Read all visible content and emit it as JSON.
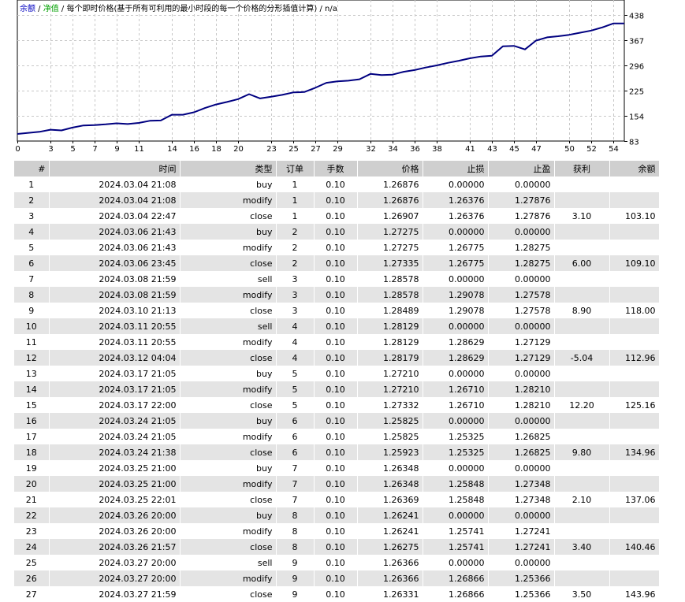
{
  "chart_data": {
    "type": "line",
    "legend": {
      "balance": "余额",
      "equity": "净值",
      "description": "每个即时价格(基于所有可利用的最小时段的每一个价格的分形插值计算)",
      "extra": "n/a"
    },
    "colors": {
      "line": "#000080",
      "balance_legend": "#0000c0",
      "equity_legend": "#00a000",
      "grid": "#c8c8c8"
    },
    "xlim": [
      0,
      55
    ],
    "ylim": [
      83,
      438
    ],
    "x_ticks": [
      0,
      3,
      5,
      7,
      9,
      11,
      14,
      16,
      18,
      20,
      23,
      25,
      27,
      29,
      32,
      34,
      36,
      38,
      41,
      43,
      45,
      47,
      50,
      52,
      54
    ],
    "y_ticks": [
      83,
      154,
      225,
      296,
      367,
      438
    ],
    "grid": true,
    "series": [
      {
        "x": [
          0,
          1,
          2,
          3,
          4,
          5,
          6,
          7,
          8,
          9,
          10,
          11,
          12,
          13,
          14,
          15,
          16,
          17,
          18,
          19,
          20,
          21,
          22,
          23,
          24,
          25,
          26,
          27,
          28,
          29,
          30,
          31,
          32,
          33,
          34,
          35,
          36,
          37,
          38,
          39,
          40,
          41,
          42,
          43,
          44,
          45,
          46,
          47,
          48,
          49,
          50,
          51,
          52,
          53,
          54,
          55
        ],
        "values": [
          103,
          106,
          109,
          115,
          113,
          121,
          127,
          128,
          130,
          133,
          131,
          134,
          140,
          141,
          157,
          157,
          164,
          176,
          186,
          193,
          201,
          215,
          203,
          208,
          213,
          220,
          221,
          233,
          247,
          251,
          253,
          257,
          272,
          269,
          270,
          278,
          283,
          290,
          296,
          303,
          309,
          316,
          321,
          323,
          350,
          351,
          341,
          366,
          375,
          378,
          382,
          388,
          394,
          403,
          414,
          414
        ]
      }
    ]
  },
  "table": {
    "headers": [
      "#",
      "时间",
      "类型",
      "订单",
      "手数",
      "价格",
      "止损",
      "止盈",
      "获利",
      "余额"
    ],
    "rows": [
      [
        "1",
        "2024.03.04 21:08",
        "buy",
        "1",
        "0.10",
        "1.26876",
        "0.00000",
        "0.00000",
        "",
        ""
      ],
      [
        "2",
        "2024.03.04 21:08",
        "modify",
        "1",
        "0.10",
        "1.26876",
        "1.26376",
        "1.27876",
        "",
        ""
      ],
      [
        "3",
        "2024.03.04 22:47",
        "close",
        "1",
        "0.10",
        "1.26907",
        "1.26376",
        "1.27876",
        "3.10",
        "103.10"
      ],
      [
        "4",
        "2024.03.06 21:43",
        "buy",
        "2",
        "0.10",
        "1.27275",
        "0.00000",
        "0.00000",
        "",
        ""
      ],
      [
        "5",
        "2024.03.06 21:43",
        "modify",
        "2",
        "0.10",
        "1.27275",
        "1.26775",
        "1.28275",
        "",
        ""
      ],
      [
        "6",
        "2024.03.06 23:45",
        "close",
        "2",
        "0.10",
        "1.27335",
        "1.26775",
        "1.28275",
        "6.00",
        "109.10"
      ],
      [
        "7",
        "2024.03.08 21:59",
        "sell",
        "3",
        "0.10",
        "1.28578",
        "0.00000",
        "0.00000",
        "",
        ""
      ],
      [
        "8",
        "2024.03.08 21:59",
        "modify",
        "3",
        "0.10",
        "1.28578",
        "1.29078",
        "1.27578",
        "",
        ""
      ],
      [
        "9",
        "2024.03.10 21:13",
        "close",
        "3",
        "0.10",
        "1.28489",
        "1.29078",
        "1.27578",
        "8.90",
        "118.00"
      ],
      [
        "10",
        "2024.03.11 20:55",
        "sell",
        "4",
        "0.10",
        "1.28129",
        "0.00000",
        "0.00000",
        "",
        ""
      ],
      [
        "11",
        "2024.03.11 20:55",
        "modify",
        "4",
        "0.10",
        "1.28129",
        "1.28629",
        "1.27129",
        "",
        ""
      ],
      [
        "12",
        "2024.03.12 04:04",
        "close",
        "4",
        "0.10",
        "1.28179",
        "1.28629",
        "1.27129",
        "-5.04",
        "112.96"
      ],
      [
        "13",
        "2024.03.17 21:05",
        "buy",
        "5",
        "0.10",
        "1.27210",
        "0.00000",
        "0.00000",
        "",
        ""
      ],
      [
        "14",
        "2024.03.17 21:05",
        "modify",
        "5",
        "0.10",
        "1.27210",
        "1.26710",
        "1.28210",
        "",
        ""
      ],
      [
        "15",
        "2024.03.17 22:00",
        "close",
        "5",
        "0.10",
        "1.27332",
        "1.26710",
        "1.28210",
        "12.20",
        "125.16"
      ],
      [
        "16",
        "2024.03.24 21:05",
        "buy",
        "6",
        "0.10",
        "1.25825",
        "0.00000",
        "0.00000",
        "",
        ""
      ],
      [
        "17",
        "2024.03.24 21:05",
        "modify",
        "6",
        "0.10",
        "1.25825",
        "1.25325",
        "1.26825",
        "",
        ""
      ],
      [
        "18",
        "2024.03.24 21:38",
        "close",
        "6",
        "0.10",
        "1.25923",
        "1.25325",
        "1.26825",
        "9.80",
        "134.96"
      ],
      [
        "19",
        "2024.03.25 21:00",
        "buy",
        "7",
        "0.10",
        "1.26348",
        "0.00000",
        "0.00000",
        "",
        ""
      ],
      [
        "20",
        "2024.03.25 21:00",
        "modify",
        "7",
        "0.10",
        "1.26348",
        "1.25848",
        "1.27348",
        "",
        ""
      ],
      [
        "21",
        "2024.03.25 22:01",
        "close",
        "7",
        "0.10",
        "1.26369",
        "1.25848",
        "1.27348",
        "2.10",
        "137.06"
      ],
      [
        "22",
        "2024.03.26 20:00",
        "buy",
        "8",
        "0.10",
        "1.26241",
        "0.00000",
        "0.00000",
        "",
        ""
      ],
      [
        "23",
        "2024.03.26 20:00",
        "modify",
        "8",
        "0.10",
        "1.26241",
        "1.25741",
        "1.27241",
        "",
        ""
      ],
      [
        "24",
        "2024.03.26 21:57",
        "close",
        "8",
        "0.10",
        "1.26275",
        "1.25741",
        "1.27241",
        "3.40",
        "140.46"
      ],
      [
        "25",
        "2024.03.27 20:00",
        "sell",
        "9",
        "0.10",
        "1.26366",
        "0.00000",
        "0.00000",
        "",
        ""
      ],
      [
        "26",
        "2024.03.27 20:00",
        "modify",
        "9",
        "0.10",
        "1.26366",
        "1.26866",
        "1.25366",
        "",
        ""
      ],
      [
        "27",
        "2024.03.27 21:59",
        "close",
        "9",
        "0.10",
        "1.26331",
        "1.26866",
        "1.25366",
        "3.50",
        "143.96"
      ]
    ]
  }
}
